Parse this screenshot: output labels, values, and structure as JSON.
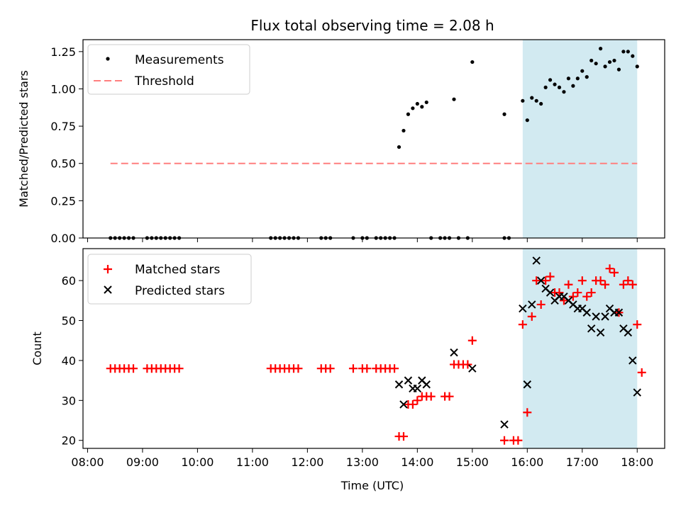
{
  "figure": {
    "title": "Flux total observing time = 2.08 h",
    "xlabel": "Time (UTC)"
  },
  "colors": {
    "measurements": "#000000",
    "threshold": "#ff7f7f",
    "matched": "#ff0000",
    "predicted": "#000000",
    "highlight": "#add8e6"
  },
  "chart_data": [
    {
      "type": "scatter",
      "panel": "top",
      "ylabel": "Matched/Predicted stars",
      "xlim": [
        "07:55",
        "18:30"
      ],
      "ylim": [
        0,
        1.33
      ],
      "yticks": [
        "0.00",
        "0.25",
        "0.50",
        "0.75",
        "1.00",
        "1.25"
      ],
      "xticks": [
        "08:00",
        "09:00",
        "10:00",
        "11:00",
        "12:00",
        "13:00",
        "14:00",
        "15:00",
        "16:00",
        "17:00",
        "18:00"
      ],
      "grid": false,
      "legend_placement": "top-left",
      "highlight_span": [
        "15:55",
        "18:00"
      ],
      "series": [
        {
          "name": "Measurements",
          "marker": "dot",
          "points": [
            [
              "08:25",
              0
            ],
            [
              "08:30",
              0
            ],
            [
              "08:35",
              0
            ],
            [
              "08:40",
              0
            ],
            [
              "08:45",
              0
            ],
            [
              "08:50",
              0
            ],
            [
              "09:05",
              0
            ],
            [
              "09:10",
              0
            ],
            [
              "09:15",
              0
            ],
            [
              "09:20",
              0
            ],
            [
              "09:25",
              0
            ],
            [
              "09:30",
              0
            ],
            [
              "09:35",
              0
            ],
            [
              "09:40",
              0
            ],
            [
              "11:20",
              0
            ],
            [
              "11:25",
              0
            ],
            [
              "11:30",
              0
            ],
            [
              "11:35",
              0
            ],
            [
              "11:40",
              0
            ],
            [
              "11:45",
              0
            ],
            [
              "11:50",
              0
            ],
            [
              "12:15",
              0
            ],
            [
              "12:20",
              0
            ],
            [
              "12:25",
              0
            ],
            [
              "12:50",
              0
            ],
            [
              "13:00",
              0
            ],
            [
              "13:05",
              0
            ],
            [
              "13:15",
              0
            ],
            [
              "13:20",
              0
            ],
            [
              "13:25",
              0
            ],
            [
              "13:30",
              0
            ],
            [
              "13:35",
              0
            ],
            [
              "13:40",
              0.61
            ],
            [
              "13:45",
              0.72
            ],
            [
              "13:50",
              0.83
            ],
            [
              "13:55",
              0.87
            ],
            [
              "14:00",
              0.9
            ],
            [
              "14:05",
              0.88
            ],
            [
              "14:10",
              0.91
            ],
            [
              "14:15",
              0
            ],
            [
              "14:25",
              0
            ],
            [
              "14:30",
              0
            ],
            [
              "14:35",
              0
            ],
            [
              "14:40",
              0.93
            ],
            [
              "14:45",
              0
            ],
            [
              "14:55",
              0
            ],
            [
              "15:00",
              1.18
            ],
            [
              "15:35",
              0.0
            ],
            [
              "15:40",
              0.0
            ],
            [
              "15:35",
              0.83
            ],
            [
              "15:55",
              0.92
            ],
            [
              "16:00",
              0.79
            ],
            [
              "16:05",
              0.94
            ],
            [
              "16:10",
              0.92
            ],
            [
              "16:15",
              0.9
            ],
            [
              "16:20",
              1.01
            ],
            [
              "16:25",
              1.06
            ],
            [
              "16:30",
              1.03
            ],
            [
              "16:35",
              1.01
            ],
            [
              "16:40",
              0.98
            ],
            [
              "16:45",
              1.07
            ],
            [
              "16:50",
              1.02
            ],
            [
              "16:55",
              1.07
            ],
            [
              "17:00",
              1.12
            ],
            [
              "17:05",
              1.08
            ],
            [
              "17:10",
              1.19
            ],
            [
              "17:15",
              1.17
            ],
            [
              "17:20",
              1.27
            ],
            [
              "17:25",
              1.15
            ],
            [
              "17:30",
              1.18
            ],
            [
              "17:35",
              1.19
            ],
            [
              "17:40",
              1.13
            ],
            [
              "17:45",
              1.25
            ],
            [
              "17:50",
              1.25
            ],
            [
              "17:55",
              1.22
            ],
            [
              "18:00",
              1.15
            ]
          ]
        },
        {
          "name": "Threshold",
          "marker": "dashed-line",
          "points": [
            [
              "08:25",
              0.5
            ],
            [
              "18:00",
              0.5
            ]
          ]
        }
      ]
    },
    {
      "type": "scatter",
      "panel": "bottom",
      "ylabel": "Count",
      "xlim": [
        "07:55",
        "18:30"
      ],
      "ylim": [
        18,
        68
      ],
      "yticks": [
        "20",
        "30",
        "40",
        "50",
        "60"
      ],
      "xticks": [
        "08:00",
        "09:00",
        "10:00",
        "11:00",
        "12:00",
        "13:00",
        "14:00",
        "15:00",
        "16:00",
        "17:00",
        "18:00"
      ],
      "grid": false,
      "legend_placement": "top-left",
      "highlight_span": [
        "15:55",
        "18:00"
      ],
      "series": [
        {
          "name": "Matched stars",
          "marker": "plus",
          "points": [
            [
              "08:25",
              38
            ],
            [
              "08:30",
              38
            ],
            [
              "08:35",
              38
            ],
            [
              "08:40",
              38
            ],
            [
              "08:45",
              38
            ],
            [
              "08:50",
              38
            ],
            [
              "09:05",
              38
            ],
            [
              "09:10",
              38
            ],
            [
              "09:15",
              38
            ],
            [
              "09:20",
              38
            ],
            [
              "09:25",
              38
            ],
            [
              "09:30",
              38
            ],
            [
              "09:35",
              38
            ],
            [
              "09:40",
              38
            ],
            [
              "11:20",
              38
            ],
            [
              "11:25",
              38
            ],
            [
              "11:30",
              38
            ],
            [
              "11:35",
              38
            ],
            [
              "11:40",
              38
            ],
            [
              "11:45",
              38
            ],
            [
              "11:50",
              38
            ],
            [
              "12:15",
              38
            ],
            [
              "12:20",
              38
            ],
            [
              "12:25",
              38
            ],
            [
              "12:50",
              38
            ],
            [
              "13:00",
              38
            ],
            [
              "13:05",
              38
            ],
            [
              "13:15",
              38
            ],
            [
              "13:20",
              38
            ],
            [
              "13:25",
              38
            ],
            [
              "13:30",
              38
            ],
            [
              "13:35",
              38
            ],
            [
              "13:40",
              21
            ],
            [
              "13:45",
              21
            ],
            [
              "13:50",
              29
            ],
            [
              "13:55",
              29
            ],
            [
              "14:00",
              30
            ],
            [
              "14:05",
              31
            ],
            [
              "14:10",
              31
            ],
            [
              "14:15",
              31
            ],
            [
              "14:30",
              31
            ],
            [
              "14:35",
              31
            ],
            [
              "14:40",
              39
            ],
            [
              "14:45",
              39
            ],
            [
              "14:50",
              39
            ],
            [
              "14:55",
              39
            ],
            [
              "15:00",
              45
            ],
            [
              "15:35",
              20
            ],
            [
              "15:45",
              20
            ],
            [
              "15:50",
              20
            ],
            [
              "15:55",
              49
            ],
            [
              "16:00",
              27
            ],
            [
              "16:05",
              51
            ],
            [
              "16:10",
              60
            ],
            [
              "16:15",
              54
            ],
            [
              "16:20",
              60
            ],
            [
              "16:25",
              61
            ],
            [
              "16:30",
              57
            ],
            [
              "16:35",
              57
            ],
            [
              "16:40",
              55
            ],
            [
              "16:45",
              59
            ],
            [
              "16:50",
              56
            ],
            [
              "16:55",
              57
            ],
            [
              "17:00",
              60
            ],
            [
              "17:05",
              56
            ],
            [
              "17:10",
              57
            ],
            [
              "17:15",
              60
            ],
            [
              "17:20",
              60
            ],
            [
              "17:25",
              59
            ],
            [
              "17:30",
              63
            ],
            [
              "17:35",
              62
            ],
            [
              "17:40",
              52
            ],
            [
              "17:45",
              59
            ],
            [
              "17:50",
              60
            ],
            [
              "17:55",
              59
            ],
            [
              "18:00",
              49
            ],
            [
              "18:05",
              37
            ]
          ]
        },
        {
          "name": "Predicted stars",
          "marker": "x",
          "points": [
            [
              "13:40",
              34
            ],
            [
              "13:45",
              29
            ],
            [
              "13:50",
              35
            ],
            [
              "13:55",
              33
            ],
            [
              "14:00",
              33
            ],
            [
              "14:05",
              35
            ],
            [
              "14:10",
              34
            ],
            [
              "14:40",
              42
            ],
            [
              "15:00",
              38
            ],
            [
              "15:35",
              24
            ],
            [
              "15:55",
              53
            ],
            [
              "16:00",
              34
            ],
            [
              "16:05",
              54
            ],
            [
              "16:10",
              65
            ],
            [
              "16:15",
              60
            ],
            [
              "16:20",
              58
            ],
            [
              "16:25",
              57
            ],
            [
              "16:30",
              55
            ],
            [
              "16:35",
              56
            ],
            [
              "16:40",
              56
            ],
            [
              "16:45",
              55
            ],
            [
              "16:50",
              54
            ],
            [
              "16:55",
              53
            ],
            [
              "17:00",
              53
            ],
            [
              "17:05",
              52
            ],
            [
              "17:10",
              48
            ],
            [
              "17:15",
              51
            ],
            [
              "17:20",
              47
            ],
            [
              "17:25",
              51
            ],
            [
              "17:30",
              53
            ],
            [
              "17:35",
              52
            ],
            [
              "17:40",
              52
            ],
            [
              "17:45",
              48
            ],
            [
              "17:50",
              47
            ],
            [
              "17:55",
              40
            ],
            [
              "18:00",
              32
            ]
          ]
        }
      ]
    }
  ]
}
